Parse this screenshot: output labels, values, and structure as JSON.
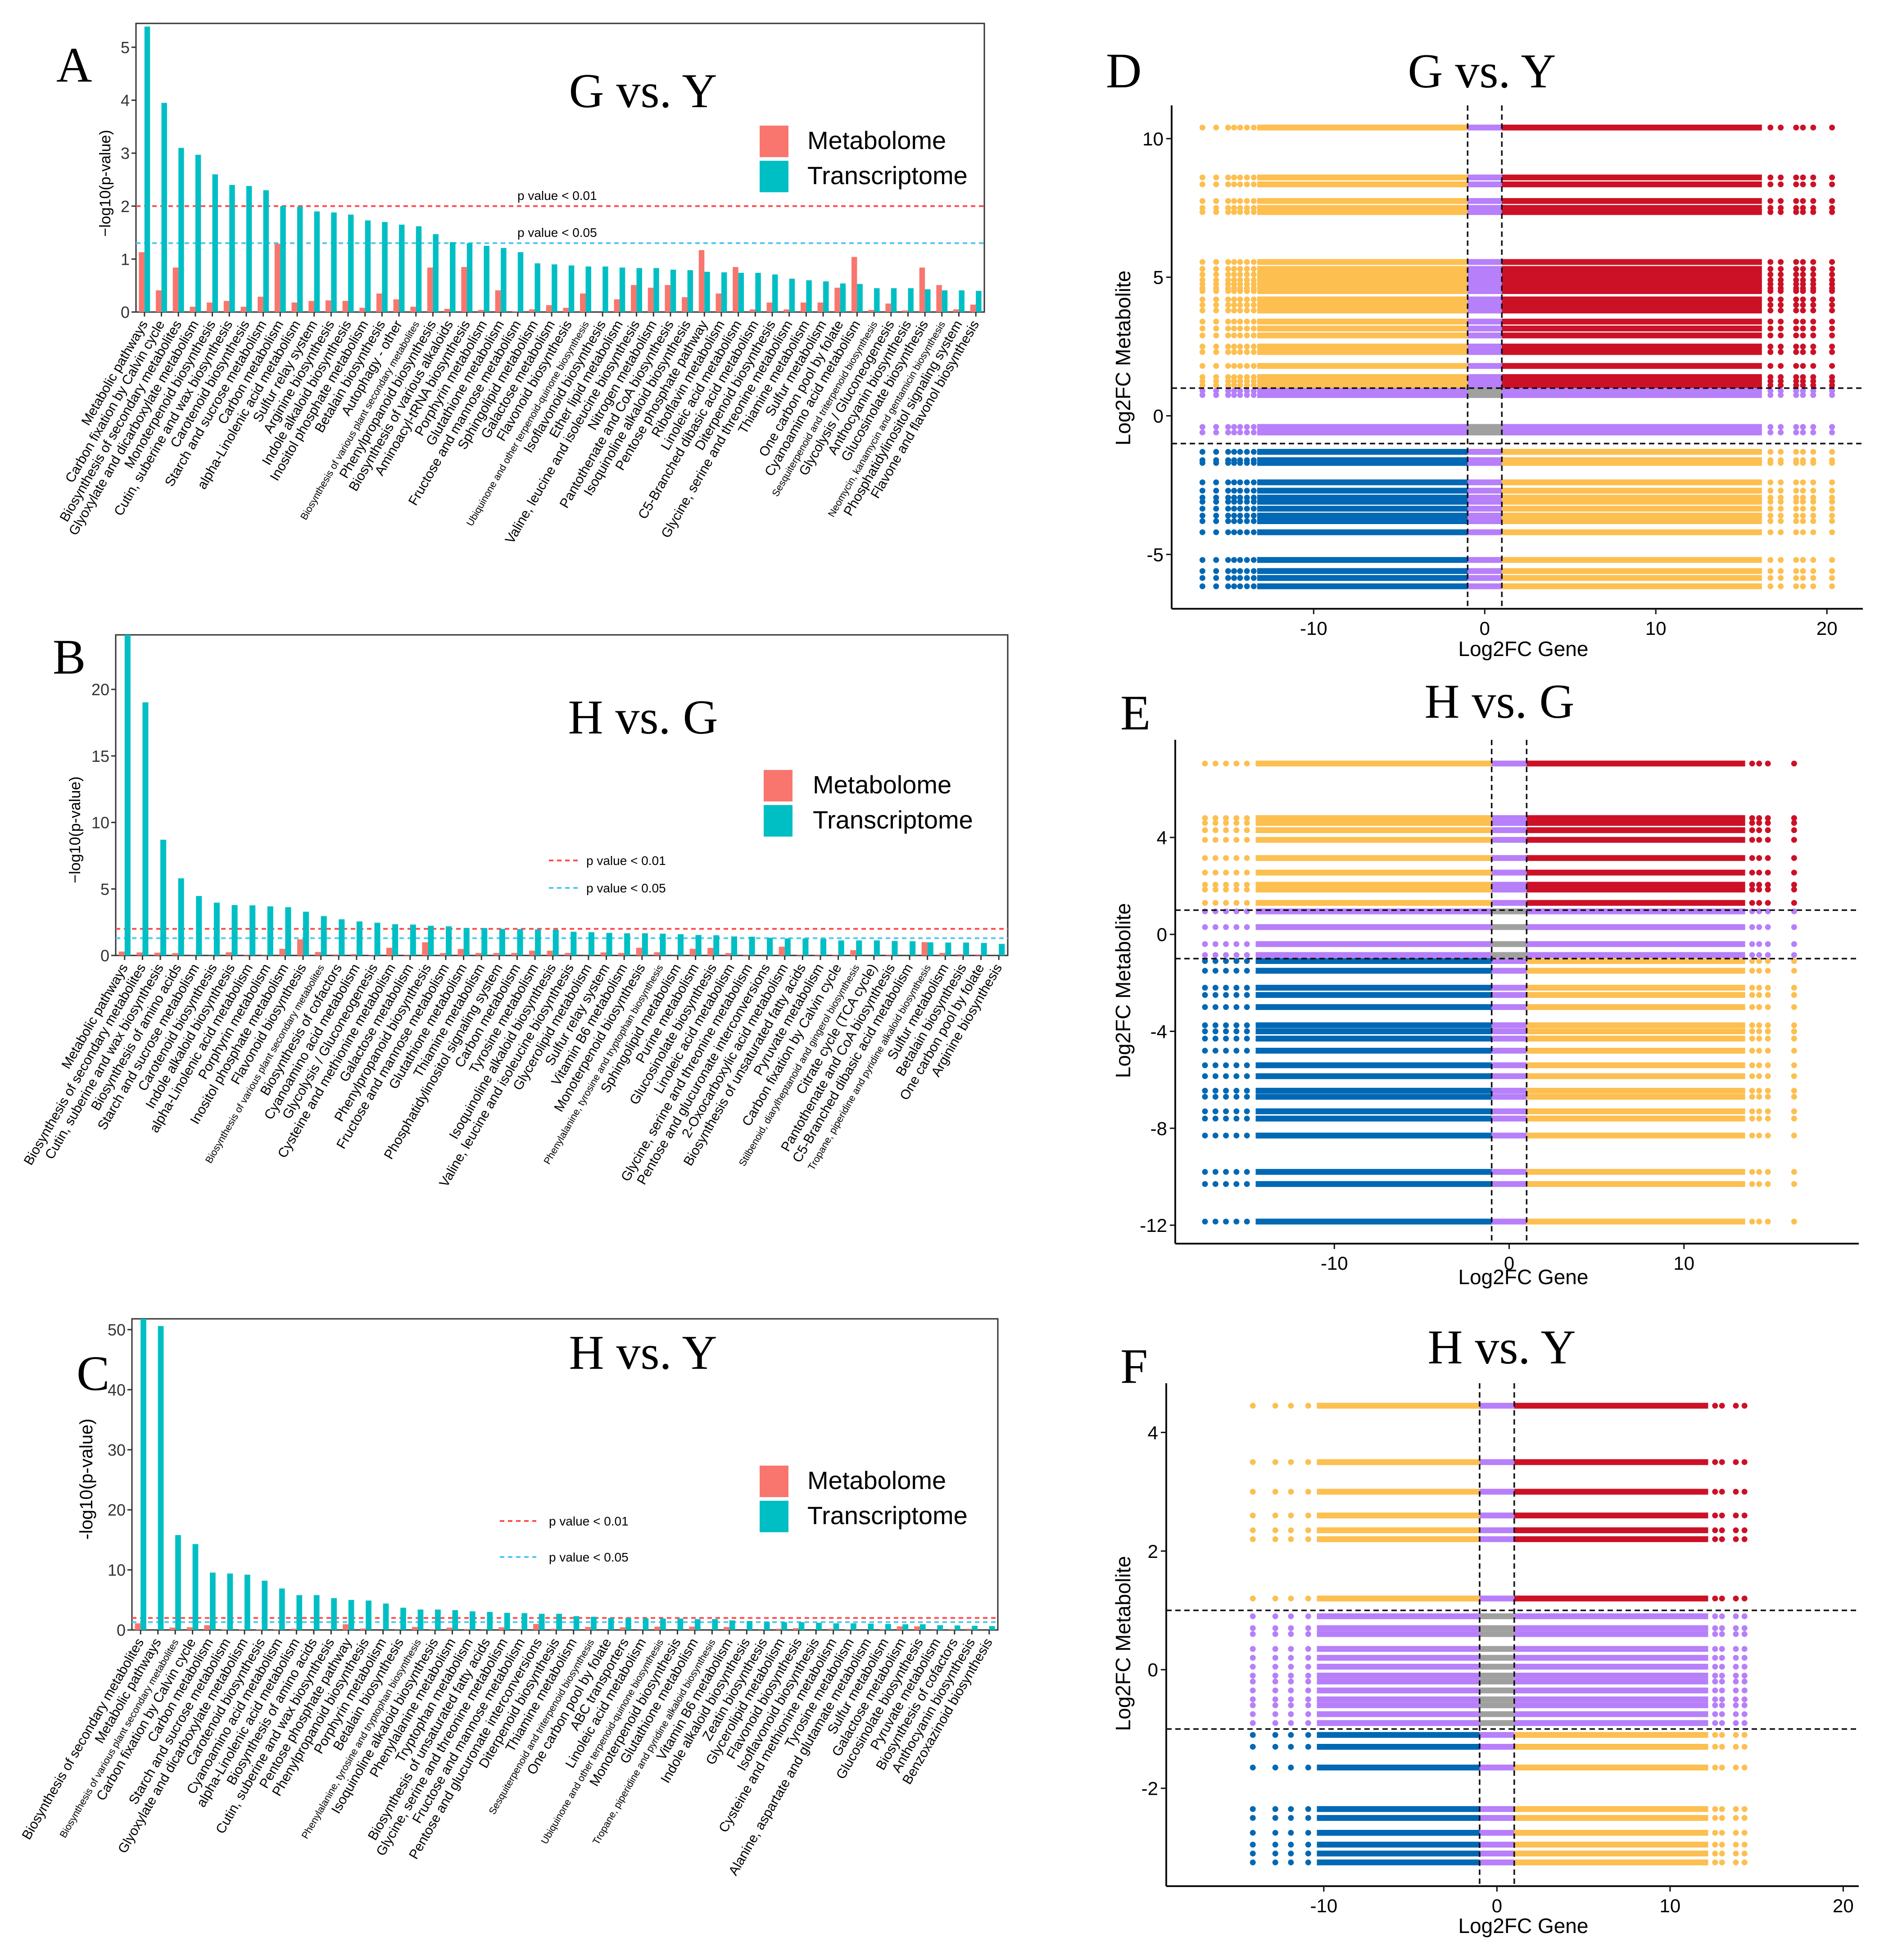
{
  "colors": {
    "metabolome": "#F8766D",
    "transcriptome": "#00BFC4",
    "p001_line": "#FF4D4D",
    "p005_line": "#4FC8F0",
    "up_up": "#CC1126",
    "mixed": "#FDBF4F",
    "down_down": "#0068B4",
    "not_sig": "#B77FFA",
    "center": "#A0A0A0"
  },
  "chart_data": [
    {
      "type": "bar",
      "panel_label": "A",
      "title": "G vs. Y",
      "ylabel": "−log10(p-value)",
      "ylim": [
        0,
        5.45
      ],
      "yticks": [
        "0",
        "1",
        "2",
        "3",
        "4",
        "5"
      ],
      "legend": [
        "Metabolome",
        "Transcriptome"
      ],
      "legend_position": "right",
      "reference_lines": [
        {
          "y": 2,
          "label": "p value < 0.01"
        },
        {
          "y": 1.301,
          "label": "p value < 0.05"
        }
      ],
      "categories": [
        "Metabolic pathways",
        "Carbon fixation by Calvin cycle",
        "Biosynthesis of secondary metabolites",
        "Glyoxylate and dicarboxylate metabolism",
        "Monoterpenoid biosynthesis",
        "Cutin, suberine and wax biosynthesis",
        "Carotenoid biosynthesis",
        "Starch and sucrose metabolism",
        "Carbon metabolism",
        "alpha-Linolenic acid metabolism",
        "Sulfur relay system",
        "Arginine biosynthesis",
        "Indole alkaloid biosynthesis",
        "Inositol phosphate metabolism",
        "Betalain biosynthesis",
        "Autophagy - other",
        "Biosynthesis of various plant secondary metabolites",
        "Phenylpropanoid biosynthesis",
        "Biosynthesis of various alkaloids",
        "Aminoacyl-tRNA biosynthesis",
        "Porphyrin metabolism",
        "Glutathione metabolism",
        "Fructose and mannose metabolism",
        "Sphingolipid metabolism",
        "Galactose metabolism",
        "Flavonoid biosynthesis",
        "Ubiquinone and other terpenoid-quinone biosynthesis",
        "Isoflavonoid biosynthesis",
        "Ether lipid metabolism",
        "Valine, leucine and isoleucine biosynthesis",
        "Nitrogen metabolism",
        "Pantothenate and CoA biosynthesis",
        "Isoquinoline alkaloid biosynthesis",
        "Pentose phosphate pathway",
        "Riboflavin metabolism",
        "Linoleic acid metabolism",
        "C5-Branched dibasic acid metabolism",
        "Diterpenoid biosynthesis",
        "Glycine, serine and threonine metabolism",
        "Thiamine metabolism",
        "Sulfur metabolism",
        "One carbon pool by folate",
        "Cyanoamino acid metabolism",
        "Sesquiterpenoid and triterpenoid biosynthesis",
        "Glycolysis / Gluconeogenesis",
        "Anthocyanin biosynthesis",
        "Glucosinolate biosynthesis",
        "Neomycin, kanamycin and gentamicin biosynthesis",
        "Phosphatidylinositol signaling system",
        "Flavone and flavonol biosynthesis"
      ],
      "series": [
        {
          "name": "Metabolome",
          "values": [
            1.13,
            0.41,
            0.84,
            0.1,
            0.18,
            0.21,
            0.1,
            0.29,
            1.29,
            0.18,
            0.21,
            0.22,
            0.21,
            0.08,
            0.35,
            0.24,
            0.1,
            0.84,
            0.06,
            0.85,
            0.04,
            0.41,
            0.01,
            0.05,
            0.13,
            0.08,
            0.35,
            0,
            0.24,
            0.51,
            0.46,
            0.51,
            0.28,
            1.17,
            0.35,
            0.85,
            0.05,
            0.18,
            0.05,
            0.18,
            0.18,
            0.46,
            1.04,
            0.04,
            0.16,
            0.03,
            0.84,
            0.51,
            0.05,
            0.14
          ]
        },
        {
          "name": "Transcriptome",
          "values": [
            5.39,
            3.95,
            3.1,
            2.97,
            2.6,
            2.4,
            2.38,
            2.3,
            2.0,
            1.99,
            1.9,
            1.88,
            1.84,
            1.73,
            1.7,
            1.65,
            1.62,
            1.47,
            1.32,
            1.3,
            1.25,
            1.21,
            1.13,
            0.92,
            0.9,
            0.88,
            0.86,
            0.86,
            0.84,
            0.83,
            0.83,
            0.8,
            0.79,
            0.76,
            0.75,
            0.74,
            0.74,
            0.71,
            0.63,
            0.6,
            0.58,
            0.54,
            0.53,
            0.45,
            0.45,
            0.45,
            0.43,
            0.41,
            0.41,
            0.4
          ]
        }
      ]
    },
    {
      "type": "bar",
      "panel_label": "B",
      "title": "H vs. G",
      "ylabel": "−log10(p-value)",
      "ylim": [
        0,
        24.1
      ],
      "yticks": [
        "0",
        "5",
        "10",
        "15",
        "20"
      ],
      "legend": [
        "Metabolome",
        "Transcriptome"
      ],
      "legend_position": "right",
      "reference_lines": [
        {
          "y": 2,
          "label": "p value < 0.01"
        },
        {
          "y": 1.301,
          "label": "p value < 0.05"
        }
      ],
      "categories": [
        "Metabolic pathways",
        "Biosynthesis of secondary metabolites",
        "Cutin, suberine and wax biosynthesis",
        "Biosynthesis of amino acids",
        "Starch and sucrose metabolism",
        "Carotenoid biosynthesis",
        "Indole alkaloid biosynthesis",
        "alpha-Linolenic acid metabolism",
        "Porphyrin metabolism",
        "Inositol phosphate metabolism",
        "Flavonoid biosynthesis",
        "Biosynthesis of various plant secondary metabolites",
        "Biosynthesis of cofactors",
        "Cyanoamino acid metabolism",
        "Glycolysis / Gluconeogenesis",
        "Cysteine and methionine metabolism",
        "Galactose metabolism",
        "Phenylpropanoid biosynthesis",
        "Fructose and mannose metabolism",
        "Glutathione metabolism",
        "Thiamine metabolism",
        "Phosphatidylinositol signaling system",
        "Carbon metabolism",
        "Tyrosine metabolism",
        "Isoquinoline alkaloid biosynthesis",
        "Valine, leucine and isoleucine biosynthesis",
        "Glycerolipid metabolism",
        "Sulfur relay system",
        "Vitamin B6 metabolism",
        "Monoterpenoid biosynthesis",
        "Phenylalanine, tyrosine and tryptophan biosynthesis",
        "Sphingolipid metabolism",
        "Purine metabolism",
        "Glucosinolate biosynthesis",
        "Linoleic acid metabolism",
        "Glycine, serine and threonine metabolism",
        "Pentose and glucuronate interconversions",
        "2-Oxocarboxylic acid metabolism",
        "Biosynthesis of unsaturated fatty acids",
        "Pyruvate metabolism",
        "Carbon fixation by Calvin cycle",
        "Stilbenoid, diarylheptanoid and gingerol biosynthesis",
        "Citrate cycle (TCA cycle)",
        "Pantothenate and CoA biosynthesis",
        "C5-Branched dibasic acid metabolism",
        "Tropane, piperidine and pyridine alkaloid biosynthesis",
        "Sulfur metabolism",
        "Betalain biosynthesis",
        "One carbon pool by folate",
        "Arginine biosynthesis"
      ],
      "series": [
        {
          "name": "Metabolome",
          "values": [
            0.29,
            0.23,
            0.21,
            0.18,
            0.02,
            0.02,
            0.24,
            0.06,
            0.03,
            0.5,
            1.21,
            0.26,
            0.08,
            0.1,
            0.05,
            0.58,
            0.06,
            0.99,
            0.18,
            0.49,
            0.19,
            0.19,
            0.19,
            0.36,
            0.36,
            0.19,
            0.01,
            0.23,
            0.19,
            0.58,
            0.24,
            0.01,
            0.5,
            0.57,
            0.18,
            0.06,
            0.01,
            0.66,
            0.06,
            0.06,
            0.06,
            0.4,
            0,
            0.06,
            0,
            1.0,
            0.19,
            0.1,
            0.08,
            0
          ]
        },
        {
          "name": "Transcriptome",
          "values": [
            24.1,
            19.03,
            8.7,
            5.8,
            4.47,
            3.97,
            3.79,
            3.77,
            3.69,
            3.63,
            3.29,
            2.96,
            2.72,
            2.56,
            2.46,
            2.35,
            2.32,
            2.23,
            2.19,
            2.07,
            2.06,
            1.99,
            1.98,
            1.96,
            1.93,
            1.78,
            1.75,
            1.7,
            1.67,
            1.67,
            1.64,
            1.6,
            1.54,
            1.52,
            1.43,
            1.41,
            1.33,
            1.28,
            1.28,
            1.26,
            1.13,
            1.13,
            1.13,
            1.09,
            1.07,
            0.99,
            0.97,
            0.97,
            0.94,
            0.87
          ]
        }
      ]
    },
    {
      "type": "bar",
      "panel_label": "C",
      "title": "H vs. Y",
      "ylabel": "-log10(p-value)",
      "ylim": [
        0,
        51.8
      ],
      "yticks": [
        "0",
        "10",
        "20",
        "30",
        "40",
        "50"
      ],
      "legend": [
        "Metabolome",
        "Transcriptome"
      ],
      "legend_position": "right",
      "reference_lines": [
        {
          "y": 2,
          "label": "p value < 0.01"
        },
        {
          "y": 1.301,
          "label": "p value < 0.05"
        }
      ],
      "categories": [
        "Biosynthesis of secondary metabolites",
        "Metabolic pathways",
        "Biosynthesis of various plant secondary metabolites",
        "Carbon fixation by Calvin cycle",
        "Carbon metabolism",
        "Starch and sucrose metabolism",
        "Glyoxylate and dicarboxylate metabolism",
        "Carotenoid biosynthesis",
        "Cyanoamino acid metabolism",
        "alpha-Linolenic acid metabolism",
        "Biosynthesis of amino acids",
        "Cutin, suberine and wax biosynthesis",
        "Pentose phosphate pathway",
        "Phenylpropanoid biosynthesis",
        "Porphyrin metabolism",
        "Betalain biosynthesis",
        "Phenylalanine, tyrosine and tryptophan biosynthesis",
        "Isoquinoline alkaloid biosynthesis",
        "Phenylalanine metabolism",
        "Tryptophan metabolism",
        "Biosynthesis of unsaturated fatty acids",
        "Glycine, serine and threonine metabolism",
        "Fructose and mannose metabolism",
        "Pentose and glucuronate interconversions",
        "Diterpenoid biosynthesis",
        "Thiamine metabolism",
        "Sesquiterpenoid and triterpenoid biosynthesis",
        "One carbon pool by folate",
        "ABC transporters",
        "Linoleic acid metabolism",
        "Ubiquinone and other terpenoid-quinone biosynthesis",
        "Monoterpenoid biosynthesis",
        "Glutathione metabolism",
        "Tropane, piperidine and pyridine alkaloid biosynthesis",
        "Vitamin B6 metabolism",
        "Indole alkaloid biosynthesis",
        "Zeatin biosynthesis",
        "Glycerolipid metabolism",
        "Flavonoid biosynthesis",
        "Isoflavonoid biosynthesis",
        "Cysteine and methionine metabolism",
        "Tyrosine metabolism",
        "Alanine, aspartate and glutamate metabolism",
        "Sulfur metabolism",
        "Galactose metabolism",
        "Glucosinolate biosynthesis",
        "Pyruvate metabolism",
        "Biosynthesis of cofactors",
        "Anthocyanin biosynthesis",
        "Benzoxazinoid biosynthesis"
      ],
      "series": [
        {
          "name": "Metabolome",
          "values": [
            1.1,
            0,
            0.4,
            0.45,
            0.8,
            0.1,
            0.1,
            0.1,
            0.1,
            0.2,
            0,
            0,
            0.95,
            0.25,
            0,
            0.05,
            0.5,
            0.15,
            0.4,
            0.15,
            0.05,
            0.45,
            0.05,
            1.0,
            0.2,
            0,
            0.5,
            0,
            0.45,
            0.05,
            0.55,
            0,
            0.55,
            0,
            0.5,
            0,
            0.05,
            0.2,
            0.3,
            0,
            0.2,
            0.1,
            0,
            0.15,
            0.6,
            0.6,
            0.05,
            0.15,
            0.2,
            0
          ]
        },
        {
          "name": "Transcriptome",
          "values": [
            51.8,
            50.6,
            15.8,
            14.3,
            9.55,
            9.4,
            9.2,
            8.2,
            6.9,
            5.8,
            5.8,
            5.3,
            5.0,
            4.9,
            4.4,
            3.7,
            3.4,
            3.4,
            3.3,
            3.1,
            3.0,
            2.85,
            2.8,
            2.7,
            2.7,
            2.3,
            2.2,
            2.0,
            2.0,
            1.95,
            1.9,
            1.9,
            1.8,
            1.8,
            1.6,
            1.5,
            1.35,
            1.3,
            1.3,
            1.2,
            1.1,
            1.1,
            1.05,
            1.0,
            0.95,
            0.95,
            0.8,
            0.75,
            0.7,
            0.65
          ]
        }
      ]
    },
    {
      "type": "scatter",
      "panel_label": "D",
      "title": "G vs. Y",
      "xlabel": "Log2FC Gene",
      "ylabel": "Log2FC Metabolite",
      "xlim": [
        -18.3,
        22.1
      ],
      "ylim": [
        -6.96,
        11.2
      ],
      "xticks": [
        "-10",
        "0",
        "10",
        "20"
      ],
      "yticks": [
        "-5",
        "0",
        "5",
        "10"
      ],
      "thresholds": {
        "x": [
          -1,
          1
        ],
        "y": [
          -1,
          1
        ]
      },
      "metabolite_levels": [
        10.4,
        8.6,
        8.35,
        7.75,
        7.5,
        7.35,
        5.55,
        5.3,
        5.1,
        4.9,
        4.75,
        4.6,
        4.5,
        4.2,
        4.0,
        3.8,
        3.4,
        3.15,
        2.9,
        2.5,
        2.3,
        1.8,
        1.4,
        1.25,
        1.1,
        0.9,
        0.75,
        -0.4,
        -0.6,
        -1.3,
        -1.6,
        -1.7,
        -2.4,
        -2.7,
        -2.95,
        -3.1,
        -3.35,
        -3.6,
        -3.8,
        -4.2,
        -5.2,
        -5.6,
        -5.85,
        -6.15
      ],
      "gene_range_dense": [
        -13.3,
        16.2
      ],
      "gene_sparse": [
        -16.5,
        -15.7,
        -15,
        -14.65,
        -14.3,
        -13.9,
        -13.5,
        16.7,
        17.3,
        18.2,
        18.6,
        19.2,
        20.3
      ]
    },
    {
      "type": "scatter",
      "panel_label": "E",
      "title": "H vs. G",
      "xlabel": "Log2FC Gene",
      "ylabel": "Log2FC Metabolite",
      "xlim": [
        -19.1,
        20.0
      ],
      "ylim": [
        -12.76,
        8.03
      ],
      "xticks": [
        "-10",
        "0",
        "10"
      ],
      "yticks": [
        "-12",
        "-8",
        "-4",
        "0",
        "4"
      ],
      "thresholds": {
        "x": [
          -1,
          1
        ],
        "y": [
          -1,
          1
        ]
      },
      "metabolite_levels": [
        7.05,
        4.8,
        4.6,
        4.3,
        3.9,
        3.15,
        2.55,
        2.05,
        1.85,
        1.3,
        0.95,
        0.3,
        -0.4,
        -0.85,
        -1.1,
        -1.5,
        -2.2,
        -2.5,
        -3.0,
        -3.75,
        -4.0,
        -4.3,
        -4.8,
        -5.4,
        -5.85,
        -6.45,
        -6.7,
        -7.3,
        -7.6,
        -8.3,
        -9.8,
        -10.3,
        -11.85
      ],
      "gene_range_dense": [
        -14.5,
        13.5
      ],
      "gene_sparse": [
        -17.4,
        -16.8,
        -16.2,
        -15.6,
        -15.0,
        13.9,
        14.3,
        14.8,
        16.3
      ]
    },
    {
      "type": "scatter",
      "panel_label": "F",
      "title": "H vs. Y",
      "xlabel": "Log2FC Gene",
      "ylabel": "Log2FC Metabolite",
      "xlim": [
        -19.1,
        20.9
      ],
      "ylim": [
        -3.65,
        4.83
      ],
      "xticks": [
        "-10",
        "0",
        "10",
        "20"
      ],
      "yticks": [
        "-2",
        "0",
        "2",
        "4"
      ],
      "thresholds": {
        "x": [
          -1,
          1
        ],
        "y": [
          -1,
          1
        ]
      },
      "metabolite_levels": [
        4.45,
        3.5,
        3.0,
        2.6,
        2.35,
        2.2,
        1.2,
        0.9,
        0.7,
        0.6,
        0.35,
        0.2,
        0.05,
        -0.1,
        -0.2,
        -0.35,
        -0.5,
        -0.6,
        -0.75,
        -0.9,
        -1.1,
        -1.3,
        -1.65,
        -2.35,
        -2.5,
        -2.75,
        -2.95,
        -3.1,
        -3.25
      ],
      "gene_range_dense": [
        -10.4,
        12.2
      ],
      "gene_sparse": [
        -14.1,
        -12.8,
        -11.9,
        -10.9,
        12.6,
        13.0,
        13.8,
        14.3
      ]
    }
  ]
}
